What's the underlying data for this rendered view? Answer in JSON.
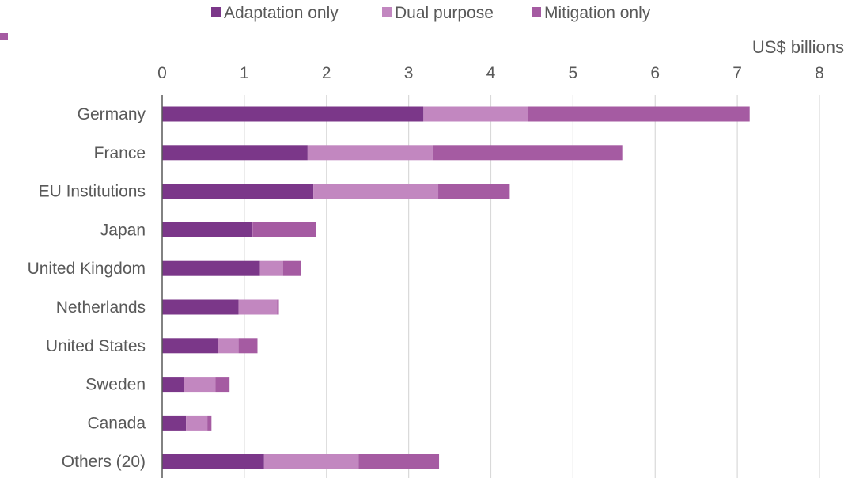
{
  "chart_data": {
    "type": "bar",
    "orientation": "horizontal",
    "stacked": true,
    "title": "",
    "xlabel": "US$ billions",
    "ylabel": "",
    "xlim": [
      0,
      8
    ],
    "x_ticks": [
      0,
      1,
      2,
      3,
      4,
      5,
      6,
      7,
      8
    ],
    "grid": "vertical",
    "legend_position": "top",
    "categories": [
      "Germany",
      "France",
      "EU Institutions",
      "Japan",
      "United Kingdom",
      "Netherlands",
      "United States",
      "Sweden",
      "Canada",
      "Others (20)"
    ],
    "series": [
      {
        "name": "Adaptation only",
        "color": "#7b3789",
        "values": [
          3.18,
          1.77,
          1.84,
          1.09,
          1.19,
          0.93,
          0.68,
          0.26,
          0.29,
          1.24
        ]
      },
      {
        "name": "Dual purpose",
        "color": "#c287c0",
        "values": [
          1.27,
          1.52,
          1.52,
          0.01,
          0.28,
          0.47,
          0.25,
          0.39,
          0.26,
          1.15
        ]
      },
      {
        "name": "Mitigation only",
        "color": "#a55ba2",
        "values": [
          2.7,
          2.31,
          0.87,
          0.77,
          0.22,
          0.02,
          0.23,
          0.17,
          0.05,
          0.98
        ]
      }
    ]
  }
}
